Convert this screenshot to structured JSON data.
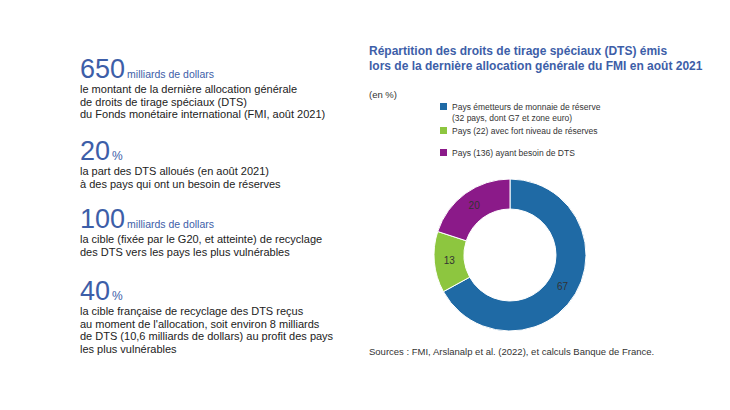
{
  "key_figures": [
    {
      "value": 650,
      "unit": "milliards de dollars",
      "lines": [
        "le montant de la dernière allocation générale",
        "de droits de tirage spéciaux (DTS)",
        "du Fonds monétaire international (FMI, août 2021)"
      ]
    },
    {
      "value": 20,
      "unit": "%",
      "lines": [
        "la part des DTS alloués (en août 2021)",
        "à des pays qui ont un besoin de réserves"
      ]
    },
    {
      "value": 100,
      "unit": "milliards de dollars",
      "lines": [
        "la cible (fixée par le G20, et atteinte) de recyclage",
        "des DTS vers les pays les plus vulnérables"
      ]
    },
    {
      "value": 40,
      "unit": "%",
      "lines": [
        "la cible française de recyclage des DTS reçus",
        "au moment de l'allocation, soit environ 8 milliards",
        "de DTS (10,6 milliards de dollars) au profit des pays",
        "les plus vulnérables"
      ]
    }
  ],
  "chart_data": {
    "type": "donut",
    "title": [
      "Répartition des droits de tirage spéciaux (DTS) émis",
      "lors de la dernière allocation générale du FMI en août 2021"
    ],
    "subtitle": "(en %)",
    "categories": [
      "Pays émetteurs de monnaie de réserve (32 pays, dont G7 et zone euro)",
      "Pays (22) avec fort niveau de réserves",
      "Pays (136) ayant besoin de DTS"
    ],
    "values": [
      67,
      13,
      20
    ],
    "colors": [
      "#1f6aa5",
      "#8dc63f",
      "#8b1a89"
    ],
    "data_labels": true,
    "legend": "top",
    "source": "Sources : FMI, Arslanalp et al. (2022), et calculs Banque de France."
  }
}
